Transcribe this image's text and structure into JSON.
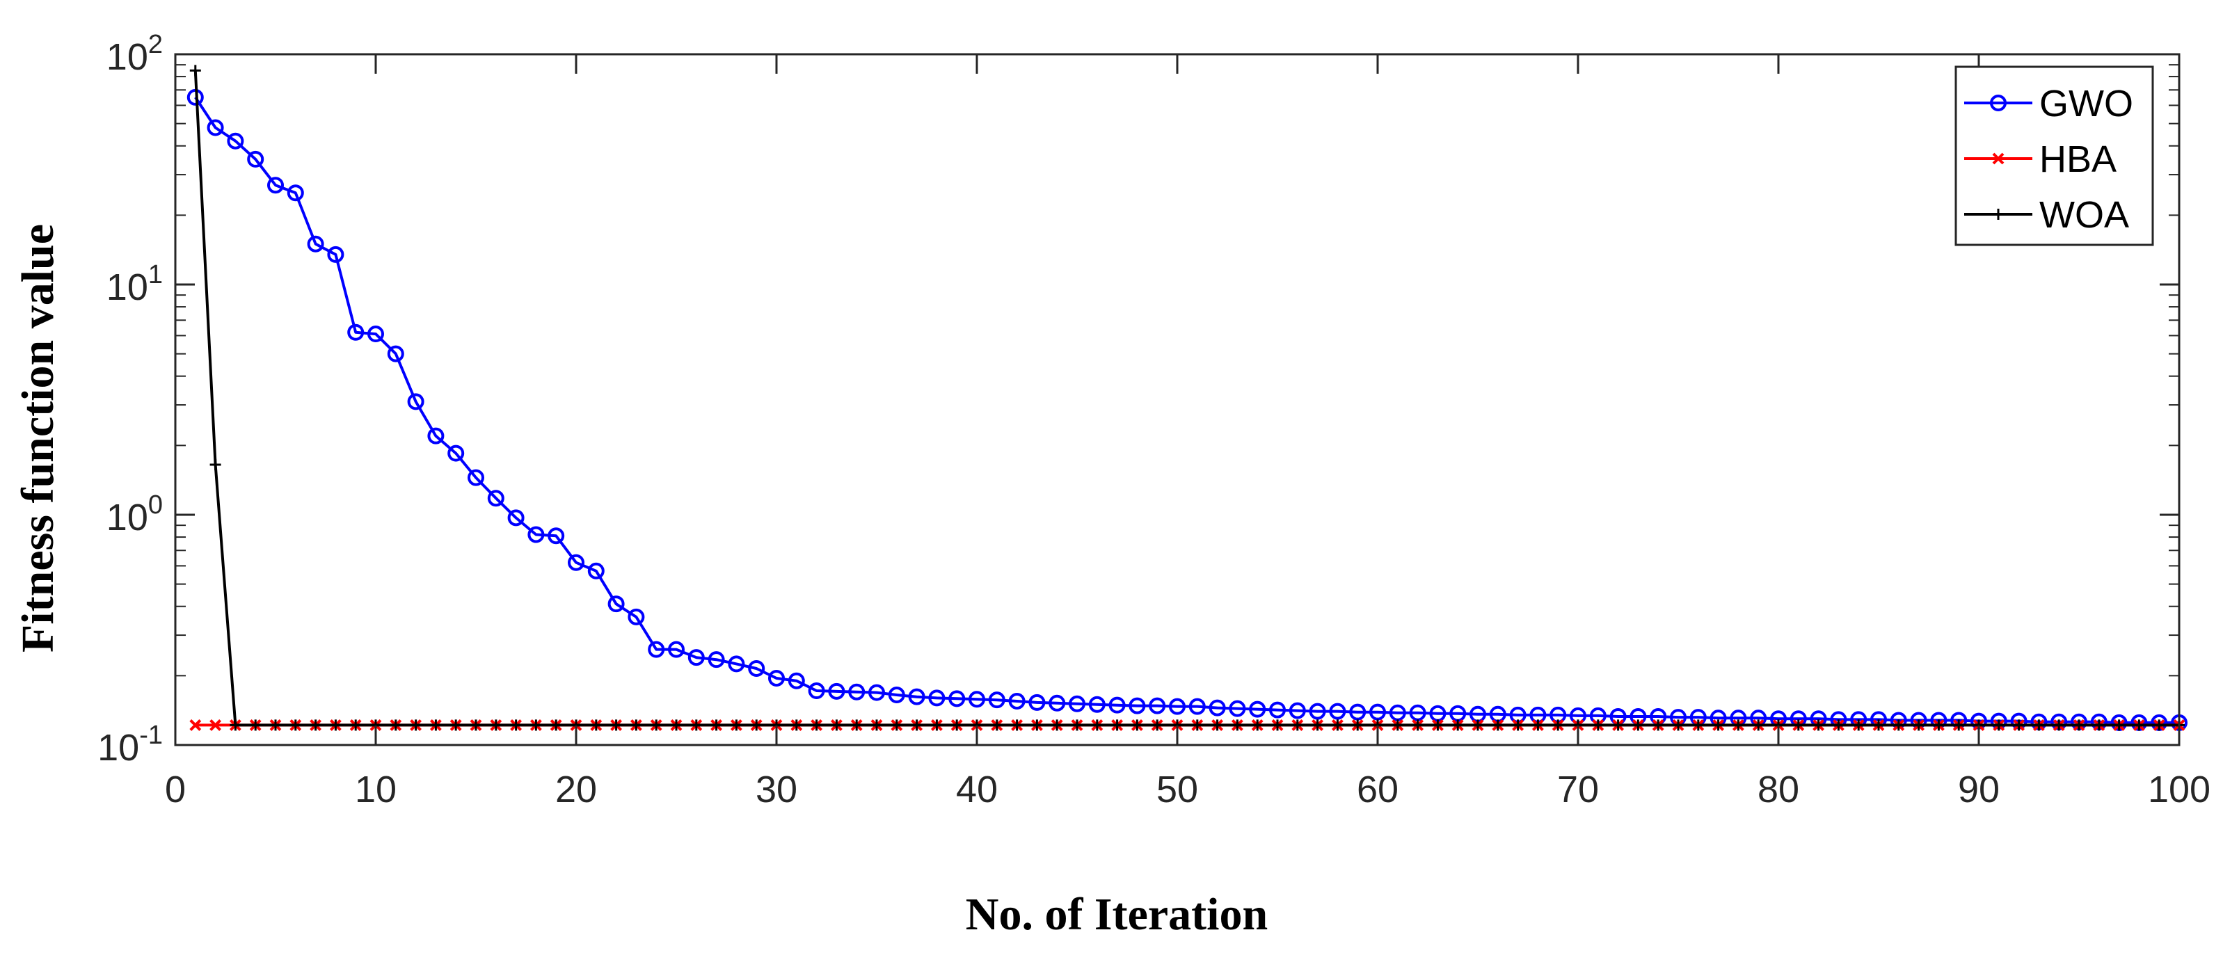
{
  "chart_data": {
    "type": "line",
    "title": "",
    "xlabel": "No. of Iteration",
    "ylabel": "Fitness function value",
    "xlim": [
      0,
      100
    ],
    "ylim": [
      0.1,
      100
    ],
    "yscale": "log",
    "x_ticks": [
      0,
      10,
      20,
      30,
      40,
      50,
      60,
      70,
      80,
      90,
      100
    ],
    "y_ticks": [
      {
        "base": "10",
        "exp": "-1"
      },
      {
        "base": "10",
        "exp": "0"
      },
      {
        "base": "10",
        "exp": "1"
      },
      {
        "base": "10",
        "exp": "2"
      }
    ],
    "grid": false,
    "legend_position": "top-right",
    "series": [
      {
        "name": "GWO",
        "color": "#0000ff",
        "marker": "circle",
        "x": [
          1,
          2,
          3,
          4,
          5,
          6,
          7,
          8,
          9,
          10,
          11,
          12,
          13,
          14,
          15,
          16,
          17,
          18,
          19,
          20,
          21,
          22,
          23,
          24,
          25,
          26,
          27,
          28,
          29,
          30,
          31,
          32,
          33,
          34,
          35,
          36,
          37,
          38,
          39,
          40,
          41,
          42,
          43,
          44,
          45,
          46,
          47,
          48,
          49,
          50,
          51,
          52,
          53,
          54,
          55,
          56,
          57,
          58,
          59,
          60,
          61,
          62,
          63,
          64,
          65,
          66,
          67,
          68,
          69,
          70,
          71,
          72,
          73,
          74,
          75,
          76,
          77,
          78,
          79,
          80,
          81,
          82,
          83,
          84,
          85,
          86,
          87,
          88,
          89,
          90,
          91,
          92,
          93,
          94,
          95,
          96,
          97,
          98,
          99,
          100
        ],
        "values": [
          65,
          48,
          42,
          35,
          27,
          25,
          15,
          13.5,
          6.2,
          6.1,
          5,
          3.1,
          2.2,
          1.85,
          1.45,
          1.18,
          0.97,
          0.82,
          0.81,
          0.62,
          0.57,
          0.41,
          0.36,
          0.26,
          0.26,
          0.24,
          0.235,
          0.225,
          0.215,
          0.195,
          0.19,
          0.172,
          0.171,
          0.17,
          0.169,
          0.165,
          0.162,
          0.16,
          0.159,
          0.158,
          0.157,
          0.155,
          0.153,
          0.152,
          0.151,
          0.15,
          0.149,
          0.148,
          0.148,
          0.147,
          0.147,
          0.145,
          0.144,
          0.143,
          0.142,
          0.141,
          0.14,
          0.14,
          0.139,
          0.139,
          0.138,
          0.138,
          0.137,
          0.137,
          0.136,
          0.136,
          0.135,
          0.135,
          0.135,
          0.134,
          0.134,
          0.133,
          0.133,
          0.133,
          0.132,
          0.132,
          0.131,
          0.131,
          0.131,
          0.13,
          0.13,
          0.13,
          0.129,
          0.129,
          0.129,
          0.128,
          0.128,
          0.128,
          0.128,
          0.127,
          0.127,
          0.127,
          0.126,
          0.126,
          0.126,
          0.126,
          0.125,
          0.125,
          0.125,
          0.125
        ]
      },
      {
        "name": "HBA",
        "color": "#ff0000",
        "marker": "x",
        "x": [
          1,
          2,
          3,
          4,
          5,
          6,
          7,
          8,
          9,
          10,
          11,
          12,
          13,
          14,
          15,
          16,
          17,
          18,
          19,
          20,
          21,
          22,
          23,
          24,
          25,
          26,
          27,
          28,
          29,
          30,
          31,
          32,
          33,
          34,
          35,
          36,
          37,
          38,
          39,
          40,
          41,
          42,
          43,
          44,
          45,
          46,
          47,
          48,
          49,
          50,
          51,
          52,
          53,
          54,
          55,
          56,
          57,
          58,
          59,
          60,
          61,
          62,
          63,
          64,
          65,
          66,
          67,
          68,
          69,
          70,
          71,
          72,
          73,
          74,
          75,
          76,
          77,
          78,
          79,
          80,
          81,
          82,
          83,
          84,
          85,
          86,
          87,
          88,
          89,
          90,
          91,
          92,
          93,
          94,
          95,
          96,
          97,
          98,
          99,
          100
        ],
        "values": [
          0.122,
          0.122,
          0.122,
          0.122,
          0.122,
          0.122,
          0.122,
          0.122,
          0.122,
          0.122,
          0.122,
          0.122,
          0.122,
          0.122,
          0.122,
          0.122,
          0.122,
          0.122,
          0.122,
          0.122,
          0.122,
          0.122,
          0.122,
          0.122,
          0.122,
          0.122,
          0.122,
          0.122,
          0.122,
          0.122,
          0.122,
          0.122,
          0.122,
          0.122,
          0.122,
          0.122,
          0.122,
          0.122,
          0.122,
          0.122,
          0.122,
          0.122,
          0.122,
          0.122,
          0.122,
          0.122,
          0.122,
          0.122,
          0.122,
          0.122,
          0.122,
          0.122,
          0.122,
          0.122,
          0.122,
          0.122,
          0.122,
          0.122,
          0.122,
          0.122,
          0.122,
          0.122,
          0.122,
          0.122,
          0.122,
          0.122,
          0.122,
          0.122,
          0.122,
          0.122,
          0.122,
          0.122,
          0.122,
          0.122,
          0.122,
          0.122,
          0.122,
          0.122,
          0.122,
          0.122,
          0.122,
          0.122,
          0.122,
          0.122,
          0.122,
          0.122,
          0.122,
          0.122,
          0.122,
          0.122,
          0.122,
          0.122,
          0.122,
          0.122,
          0.122,
          0.122,
          0.122,
          0.122,
          0.122,
          0.122
        ]
      },
      {
        "name": "WOA",
        "color": "#000000",
        "marker": "plus",
        "x": [
          1,
          2,
          3,
          4,
          5,
          6,
          7,
          8,
          9,
          10,
          11,
          12,
          13,
          14,
          15,
          16,
          17,
          18,
          19,
          20,
          21,
          22,
          23,
          24,
          25,
          26,
          27,
          28,
          29,
          30,
          31,
          32,
          33,
          34,
          35,
          36,
          37,
          38,
          39,
          40,
          41,
          42,
          43,
          44,
          45,
          46,
          47,
          48,
          49,
          50,
          51,
          52,
          53,
          54,
          55,
          56,
          57,
          58,
          59,
          60,
          61,
          62,
          63,
          64,
          65,
          66,
          67,
          68,
          69,
          70,
          71,
          72,
          73,
          74,
          75,
          76,
          77,
          78,
          79,
          80,
          81,
          82,
          83,
          84,
          85,
          86,
          87,
          88,
          89,
          90,
          91,
          92,
          93,
          94,
          95,
          96,
          97,
          98,
          99,
          100
        ],
        "values": [
          85,
          1.65,
          0.122,
          0.122,
          0.122,
          0.122,
          0.122,
          0.122,
          0.122,
          0.122,
          0.122,
          0.122,
          0.122,
          0.122,
          0.122,
          0.122,
          0.122,
          0.122,
          0.122,
          0.122,
          0.122,
          0.122,
          0.122,
          0.122,
          0.122,
          0.122,
          0.122,
          0.122,
          0.122,
          0.122,
          0.122,
          0.122,
          0.122,
          0.122,
          0.122,
          0.122,
          0.122,
          0.122,
          0.122,
          0.122,
          0.122,
          0.122,
          0.122,
          0.122,
          0.122,
          0.122,
          0.122,
          0.122,
          0.122,
          0.122,
          0.122,
          0.122,
          0.122,
          0.122,
          0.122,
          0.122,
          0.122,
          0.122,
          0.122,
          0.122,
          0.122,
          0.122,
          0.122,
          0.122,
          0.122,
          0.122,
          0.122,
          0.122,
          0.122,
          0.122,
          0.122,
          0.122,
          0.122,
          0.122,
          0.122,
          0.122,
          0.122,
          0.122,
          0.122,
          0.122,
          0.122,
          0.122,
          0.122,
          0.122,
          0.122,
          0.122,
          0.122,
          0.122,
          0.122,
          0.122,
          0.122,
          0.122,
          0.122,
          0.122,
          0.122,
          0.122,
          0.122,
          0.122,
          0.122,
          0.122
        ]
      }
    ]
  }
}
